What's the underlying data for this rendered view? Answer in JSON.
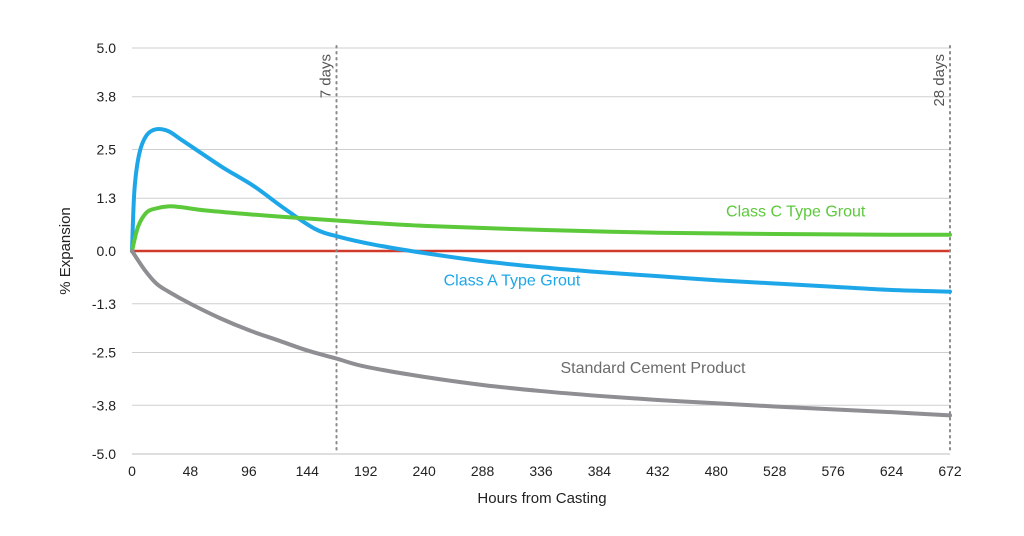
{
  "chart_data": {
    "type": "line",
    "title": "",
    "xlabel": "Hours from Casting",
    "ylabel": "% Expansion",
    "xlim": [
      0,
      672
    ],
    "ylim": [
      -5.0,
      5.0
    ],
    "x_ticks": [
      0,
      48,
      96,
      144,
      192,
      240,
      288,
      336,
      384,
      432,
      480,
      528,
      576,
      624,
      672
    ],
    "y_ticks": [
      5.0,
      3.8,
      2.5,
      1.3,
      0.0,
      -1.3,
      -2.5,
      -3.8,
      -5.0
    ],
    "y_tick_labels": [
      "5.0",
      "3.8",
      "2.5",
      "1.3",
      "0.0",
      "-1.3",
      "-2.5",
      "-3.8",
      "-5.0"
    ],
    "x_tick_labels": [
      "0",
      "48",
      "96",
      "144",
      "192",
      "240",
      "288",
      "336",
      "384",
      "432",
      "480",
      "528",
      "576",
      "624",
      "672"
    ],
    "grid": "horizontal",
    "legend": "none",
    "reference_lines": [
      {
        "x": 168,
        "label": "7 days",
        "style": "dotted"
      },
      {
        "x": 672,
        "label": "28 days",
        "style": "dotted"
      }
    ],
    "zero_line_color": "#d13a2a",
    "series": [
      {
        "name": "Class A Type Grout",
        "color": "#1ea7e8",
        "x": [
          0,
          2,
          6,
          12,
          20,
          30,
          40,
          55,
          75,
          100,
          125,
          150,
          170,
          200,
          240,
          288,
          336,
          384,
          432,
          480,
          528,
          576,
          624,
          672
        ],
        "y": [
          0.0,
          1.5,
          2.4,
          2.85,
          3.0,
          2.95,
          2.75,
          2.45,
          2.05,
          1.6,
          1.05,
          0.55,
          0.35,
          0.15,
          -0.05,
          -0.25,
          -0.4,
          -0.52,
          -0.62,
          -0.72,
          -0.8,
          -0.88,
          -0.96,
          -1.0
        ]
      },
      {
        "name": "Class C Type Grout",
        "color": "#5cc93b",
        "x": [
          0,
          5,
          12,
          20,
          30,
          40,
          60,
          90,
          120,
          168,
          240,
          336,
          432,
          528,
          624,
          672
        ],
        "y": [
          0.0,
          0.6,
          0.95,
          1.05,
          1.1,
          1.08,
          1.0,
          0.92,
          0.85,
          0.75,
          0.62,
          0.52,
          0.45,
          0.42,
          0.4,
          0.4
        ]
      },
      {
        "name": "Standard Cement Product",
        "color": "#8e8e93",
        "x": [
          0,
          10,
          20,
          30,
          48,
          72,
          96,
          120,
          144,
          168,
          192,
          240,
          288,
          336,
          384,
          432,
          480,
          528,
          576,
          624,
          672
        ],
        "y": [
          0.0,
          -0.45,
          -0.8,
          -1.0,
          -1.3,
          -1.65,
          -1.95,
          -2.2,
          -2.45,
          -2.65,
          -2.85,
          -3.1,
          -3.3,
          -3.45,
          -3.57,
          -3.67,
          -3.75,
          -3.83,
          -3.9,
          -3.97,
          -4.05
        ]
      }
    ],
    "annotations": [
      {
        "text": "Class C Type Grout",
        "color": "#5cc93b",
        "x": 488,
        "y": 0.85
      },
      {
        "text": "Class A Type Grout",
        "color": "#1ea7e8",
        "x": 256,
        "y": -0.85
      },
      {
        "text": "Standard Cement Product",
        "color": "#6b6b6b",
        "x": 352,
        "y": -3.0
      }
    ]
  }
}
